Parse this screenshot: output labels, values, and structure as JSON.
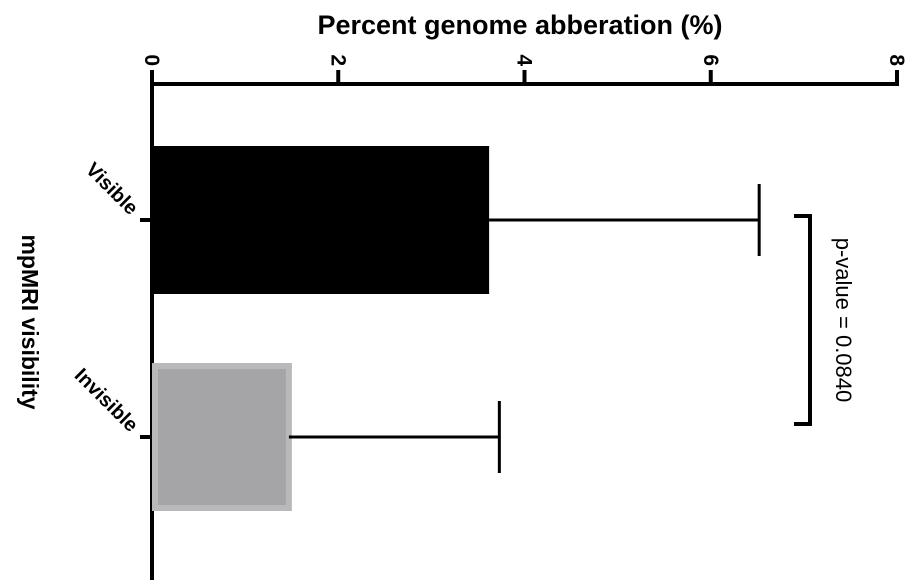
{
  "chart_data": {
    "type": "bar",
    "orientation": "horizontal",
    "title": "Percent genome abberation (%)",
    "xlabel": "Percent genome abberation (%)",
    "ylabel": "mpMRI visibility",
    "categories": [
      "Visible",
      "Invisible"
    ],
    "values": [
      3.62,
      1.47
    ],
    "error_upper": [
      6.52,
      3.73
    ],
    "xlim": [
      0,
      8
    ],
    "xticks": [
      "0",
      "2",
      "4",
      "6",
      "8"
    ],
    "bar_colors": [
      "#000000",
      "#a5a5a7"
    ],
    "bar_edge_colors": [
      "#000000",
      "#b9b9bb"
    ],
    "grid": false,
    "annotation": {
      "text": "p-value = 0.0840",
      "between": [
        "Visible",
        "Invisible"
      ]
    }
  }
}
